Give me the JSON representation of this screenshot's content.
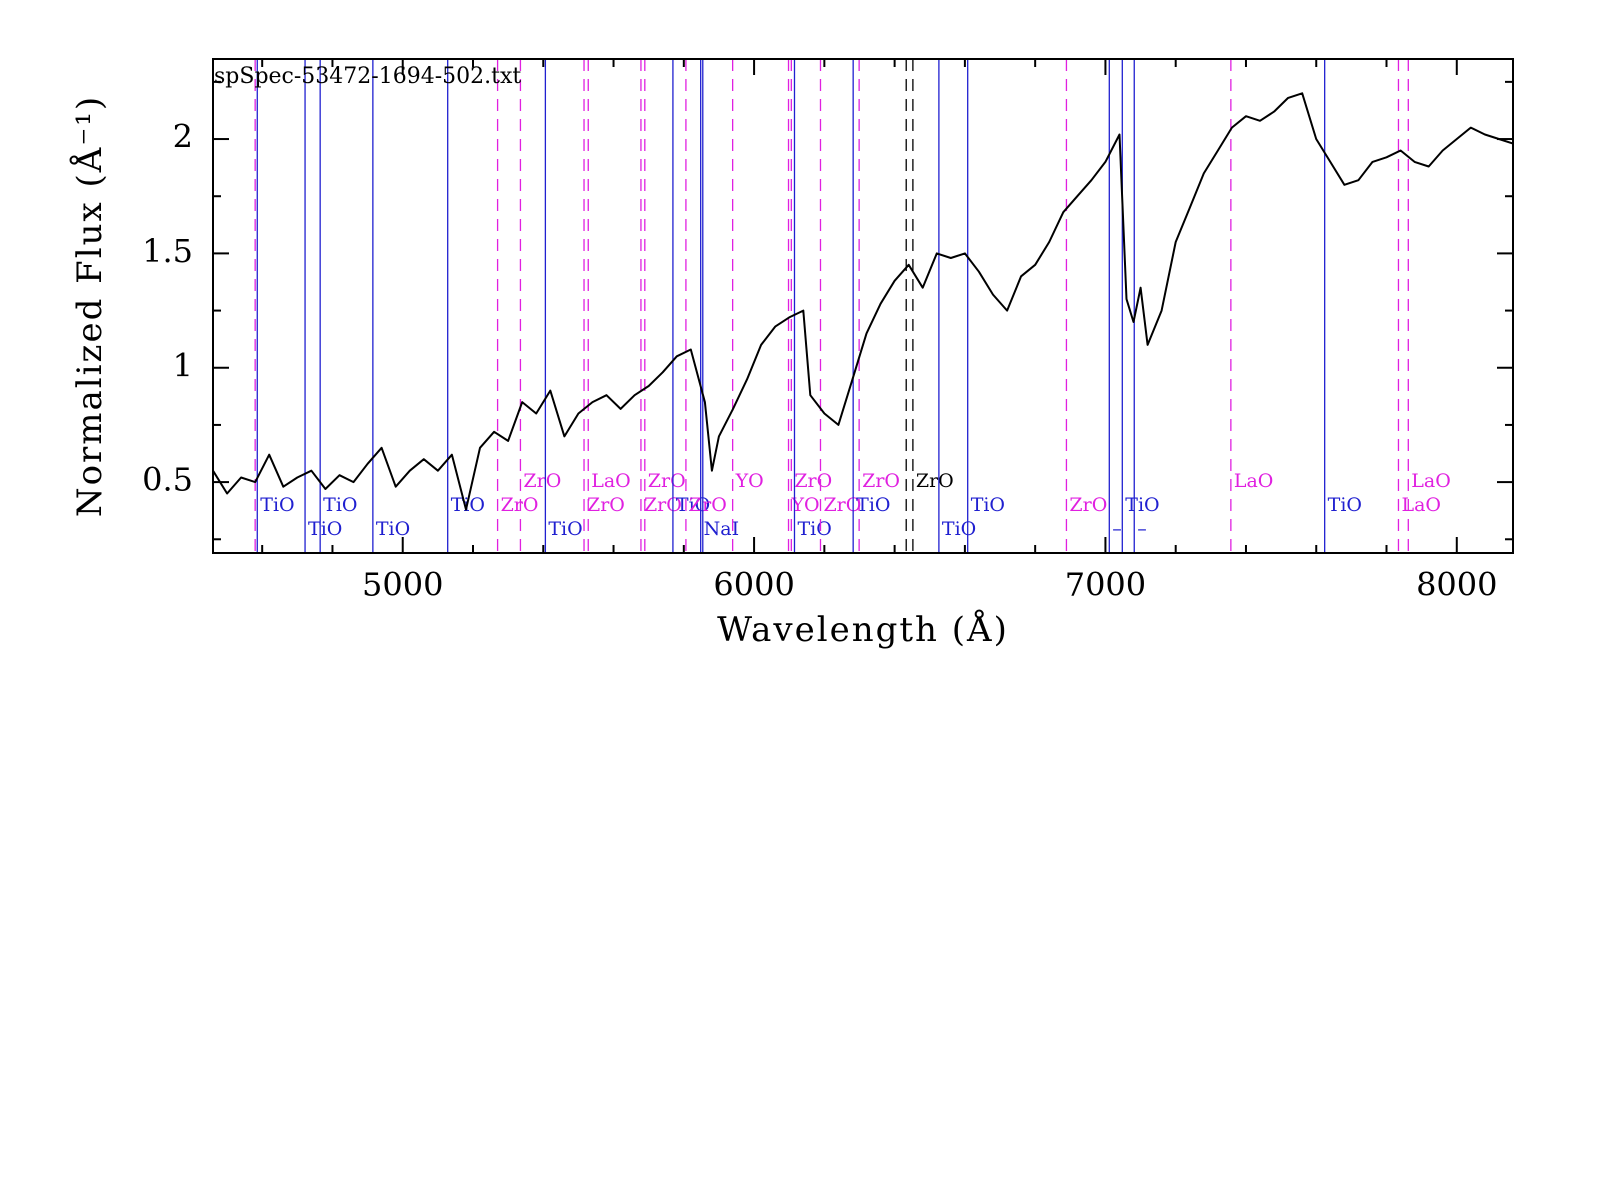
{
  "chart_data": {
    "type": "line",
    "title": "spSpec-53472-1694-502.txt",
    "xlabel": "Wavelength (Å)",
    "ylabel": "Normalized Flux  (Å⁻¹)",
    "xlim": [
      4460,
      8160
    ],
    "ylim": [
      0.19,
      2.35
    ],
    "xticks": [
      5000,
      6000,
      7000,
      8000
    ],
    "yticks": [
      0.5,
      1,
      1.5,
      2
    ],
    "xticks_minor": [
      4600,
      4800,
      5200,
      5400,
      5600,
      5800,
      6200,
      6400,
      6600,
      6800,
      7200,
      7400,
      7600,
      7800,
      8200
    ],
    "yticks_minor": [
      0.25,
      0.75,
      1.25,
      1.75,
      2.25
    ],
    "color": "#000000",
    "x": [
      4460,
      4500,
      4540,
      4580,
      4620,
      4660,
      4700,
      4740,
      4780,
      4820,
      4860,
      4900,
      4940,
      4980,
      5020,
      5060,
      5100,
      5140,
      5180,
      5220,
      5260,
      5300,
      5340,
      5380,
      5420,
      5460,
      5500,
      5540,
      5580,
      5620,
      5660,
      5700,
      5740,
      5780,
      5820,
      5860,
      5880,
      5900,
      5940,
      5980,
      6020,
      6060,
      6100,
      6140,
      6160,
      6200,
      6240,
      6280,
      6320,
      6360,
      6400,
      6440,
      6480,
      6520,
      6560,
      6600,
      6640,
      6680,
      6720,
      6760,
      6800,
      6840,
      6880,
      6920,
      6960,
      7000,
      7040,
      7060,
      7080,
      7100,
      7120,
      7160,
      7200,
      7240,
      7280,
      7320,
      7360,
      7400,
      7440,
      7480,
      7520,
      7560,
      7600,
      7640,
      7680,
      7720,
      7760,
      7800,
      7840,
      7880,
      7920,
      7960,
      8000,
      8040,
      8080,
      8120,
      8160
    ],
    "values": [
      0.55,
      0.45,
      0.52,
      0.5,
      0.62,
      0.48,
      0.52,
      0.55,
      0.47,
      0.53,
      0.5,
      0.58,
      0.65,
      0.48,
      0.55,
      0.6,
      0.55,
      0.62,
      0.38,
      0.65,
      0.72,
      0.68,
      0.85,
      0.8,
      0.9,
      0.7,
      0.8,
      0.85,
      0.88,
      0.82,
      0.88,
      0.92,
      0.98,
      1.05,
      1.08,
      0.85,
      0.55,
      0.7,
      0.82,
      0.95,
      1.1,
      1.18,
      1.22,
      1.25,
      0.88,
      0.8,
      0.75,
      0.95,
      1.15,
      1.28,
      1.38,
      1.45,
      1.35,
      1.5,
      1.48,
      1.5,
      1.42,
      1.32,
      1.25,
      1.4,
      1.45,
      1.55,
      1.68,
      1.75,
      1.82,
      1.9,
      2.02,
      1.3,
      1.2,
      1.35,
      1.1,
      1.25,
      1.55,
      1.7,
      1.85,
      1.95,
      2.05,
      2.1,
      2.08,
      2.12,
      2.18,
      2.2,
      2.0,
      1.9,
      1.8,
      1.82,
      1.9,
      1.92,
      1.95,
      1.9,
      1.88,
      1.95,
      2.0,
      2.05,
      2.02,
      2.0,
      1.98
    ],
    "lines": [
      {
        "x": 4580,
        "color": "#e020e0",
        "dashed": true
      },
      {
        "x": 4586,
        "label": "TiO",
        "color": "#2020d0",
        "dashed": false
      },
      {
        "x": 4722,
        "label": "TiO",
        "color": "#2020d0",
        "dashed": false
      },
      {
        "x": 4765,
        "label": "TiO",
        "color": "#2020d0",
        "dashed": false
      },
      {
        "x": 4915,
        "label": "TiO",
        "color": "#2020d0",
        "dashed": false
      },
      {
        "x": 5128,
        "label": "TiO",
        "color": "#2020d0",
        "dashed": false
      },
      {
        "x": 5270,
        "label": "ZrO",
        "color": "#e020e0",
        "dashed": true
      },
      {
        "x": 5335,
        "label": "ZrO",
        "color": "#e020e0",
        "dashed": true
      },
      {
        "x": 5406,
        "label": "TiO",
        "color": "#2020d0",
        "dashed": false
      },
      {
        "x": 5516,
        "label": "ZrO",
        "color": "#e020e0",
        "dashed": true
      },
      {
        "x": 5528,
        "label": "LaO",
        "color": "#e020e0",
        "dashed": true
      },
      {
        "x": 5678,
        "label": "ZrO",
        "color": "#e020e0",
        "dashed": true
      },
      {
        "x": 5689,
        "label": "ZrO",
        "color": "#e020e0",
        "dashed": true
      },
      {
        "x": 5769,
        "label": "TiO",
        "color": "#2020d0",
        "dashed": false
      },
      {
        "x": 5806,
        "label": "ZrO",
        "color": "#e020e0",
        "dashed": true
      },
      {
        "x": 5848,
        "label": "NaI",
        "color": "#2020d0",
        "dashed": false
      },
      {
        "x": 5854,
        "color": "#2020d0",
        "dashed": false
      },
      {
        "x": 5939,
        "label": "YO",
        "color": "#e020e0",
        "dashed": true
      },
      {
        "x": 6098,
        "label": "YO",
        "color": "#e020e0",
        "dashed": true
      },
      {
        "x": 6106,
        "label": "ZrO",
        "color": "#e020e0",
        "dashed": true
      },
      {
        "x": 6115,
        "label": "TiO",
        "color": "#2020d0",
        "dashed": false
      },
      {
        "x": 6189,
        "label": "ZrO",
        "color": "#e020e0",
        "dashed": true
      },
      {
        "x": 6282,
        "label": "TiO",
        "color": "#2020d0",
        "dashed": false
      },
      {
        "x": 6299,
        "label": "ZrO",
        "color": "#e020e0",
        "dashed": true
      },
      {
        "x": 6433,
        "color": "#000000",
        "dashed": true
      },
      {
        "x": 6452,
        "label": "ZrO",
        "color": "#000000",
        "dashed": true
      },
      {
        "x": 6526,
        "label": "TiO",
        "color": "#2020d0",
        "dashed": false
      },
      {
        "x": 6608,
        "label": "TiO",
        "color": "#2020d0",
        "dashed": false
      },
      {
        "x": 6889,
        "label": "ZrO",
        "color": "#e020e0",
        "dashed": true
      },
      {
        "x": 7011,
        "label": "–",
        "color": "#2020d0",
        "dashed": false
      },
      {
        "x": 7048,
        "label": "TiO",
        "color": "#2020d0",
        "dashed": false
      },
      {
        "x": 7082,
        "label": "–",
        "color": "#2020d0",
        "dashed": false
      },
      {
        "x": 7357,
        "label": "LaO",
        "color": "#e020e0",
        "dashed": true
      },
      {
        "x": 7624,
        "label": "TiO",
        "color": "#2020d0",
        "dashed": false
      },
      {
        "x": 7834,
        "label": "LaO",
        "color": "#e020e0",
        "dashed": true
      },
      {
        "x": 7862,
        "label": "LaO",
        "color": "#e020e0",
        "dashed": true
      }
    ]
  }
}
